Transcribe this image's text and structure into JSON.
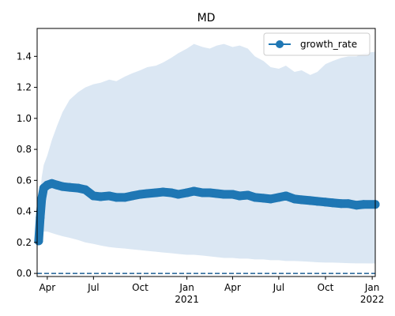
{
  "chart_data": {
    "type": "line",
    "title": "MD",
    "xlabel": "",
    "ylabel": "",
    "xlim": [
      "2020-03-12",
      "2022-01-07"
    ],
    "ylim": [
      -0.02,
      1.58
    ],
    "x_ticks": [
      {
        "date": "2020-04-01",
        "label": "Apr",
        "sub": ""
      },
      {
        "date": "2020-07-01",
        "label": "Jul",
        "sub": ""
      },
      {
        "date": "2020-10-01",
        "label": "Oct",
        "sub": ""
      },
      {
        "date": "2021-01-01",
        "label": "Jan",
        "sub": "2021"
      },
      {
        "date": "2021-04-01",
        "label": "Apr",
        "sub": ""
      },
      {
        "date": "2021-07-01",
        "label": "Jul",
        "sub": ""
      },
      {
        "date": "2021-10-01",
        "label": "Oct",
        "sub": ""
      },
      {
        "date": "2022-01-01",
        "label": "Jan",
        "sub": "2022"
      }
    ],
    "y_ticks": [
      {
        "value": 0.0,
        "label": "0.0"
      },
      {
        "value": 0.2,
        "label": "0.2"
      },
      {
        "value": 0.4,
        "label": "0.4"
      },
      {
        "value": 0.6,
        "label": "0.6"
      },
      {
        "value": 0.8,
        "label": "0.8"
      },
      {
        "value": 1.0,
        "label": "1.0"
      },
      {
        "value": 1.2,
        "label": "1.2"
      },
      {
        "value": 1.4,
        "label": "1.4"
      }
    ],
    "legend": {
      "position": "top-right"
    },
    "reference_line": {
      "y": 0.0,
      "style": "dashed",
      "color": "#1f5f94"
    },
    "series": [
      {
        "name": "growth_rate",
        "color": "#1f77b4",
        "band_color": "#dbe7f3",
        "x": [
          "2020-03-15",
          "2020-03-18",
          "2020-03-21",
          "2020-03-25",
          "2020-04-01",
          "2020-04-10",
          "2020-04-20",
          "2020-05-01",
          "2020-05-15",
          "2020-06-01",
          "2020-06-15",
          "2020-07-01",
          "2020-07-15",
          "2020-08-01",
          "2020-08-15",
          "2020-09-01",
          "2020-09-15",
          "2020-10-01",
          "2020-10-15",
          "2020-11-01",
          "2020-11-15",
          "2020-12-01",
          "2020-12-15",
          "2021-01-01",
          "2021-01-15",
          "2021-02-01",
          "2021-02-15",
          "2021-03-01",
          "2021-03-15",
          "2021-04-01",
          "2021-04-15",
          "2021-05-01",
          "2021-05-15",
          "2021-06-01",
          "2021-06-15",
          "2021-07-01",
          "2021-07-15",
          "2021-08-01",
          "2021-08-15",
          "2021-09-01",
          "2021-09-15",
          "2021-10-01",
          "2021-10-15",
          "2021-11-01",
          "2021-11-15",
          "2021-12-01",
          "2021-12-15",
          "2022-01-07"
        ],
        "y": [
          0.21,
          0.36,
          0.48,
          0.55,
          0.57,
          0.58,
          0.57,
          0.56,
          0.555,
          0.55,
          0.54,
          0.5,
          0.495,
          0.5,
          0.49,
          0.49,
          0.5,
          0.51,
          0.515,
          0.52,
          0.525,
          0.52,
          0.51,
          0.52,
          0.53,
          0.52,
          0.52,
          0.515,
          0.51,
          0.51,
          0.5,
          0.505,
          0.49,
          0.485,
          0.48,
          0.49,
          0.5,
          0.48,
          0.475,
          0.47,
          0.465,
          0.46,
          0.455,
          0.45,
          0.45,
          0.44,
          0.445,
          0.445
        ],
        "lower": [
          0.2,
          0.24,
          0.26,
          0.27,
          0.27,
          0.26,
          0.25,
          0.24,
          0.23,
          0.215,
          0.2,
          0.19,
          0.18,
          0.17,
          0.165,
          0.16,
          0.155,
          0.15,
          0.145,
          0.14,
          0.135,
          0.13,
          0.125,
          0.12,
          0.12,
          0.115,
          0.11,
          0.105,
          0.1,
          0.1,
          0.095,
          0.095,
          0.09,
          0.09,
          0.085,
          0.085,
          0.08,
          0.08,
          0.078,
          0.075,
          0.072,
          0.07,
          0.07,
          0.068,
          0.066,
          0.065,
          0.065,
          0.064
        ],
        "upper": [
          0.23,
          0.5,
          0.62,
          0.7,
          0.76,
          0.86,
          0.95,
          1.04,
          1.12,
          1.17,
          1.2,
          1.22,
          1.23,
          1.25,
          1.24,
          1.27,
          1.29,
          1.31,
          1.33,
          1.34,
          1.36,
          1.39,
          1.42,
          1.45,
          1.48,
          1.46,
          1.45,
          1.47,
          1.48,
          1.46,
          1.47,
          1.45,
          1.4,
          1.37,
          1.33,
          1.32,
          1.34,
          1.3,
          1.31,
          1.28,
          1.3,
          1.35,
          1.37,
          1.39,
          1.4,
          1.4,
          1.42,
          1.43
        ]
      }
    ]
  }
}
